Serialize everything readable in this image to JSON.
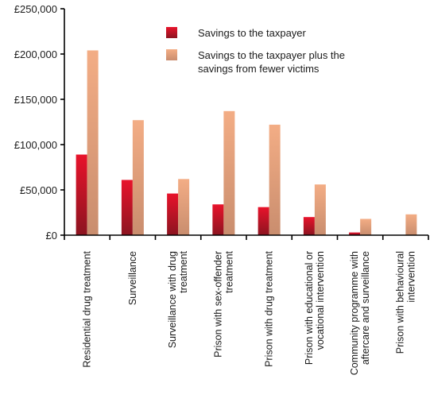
{
  "chart_data": {
    "type": "bar",
    "title": "",
    "xlabel": "",
    "ylabel": "",
    "ylim": [
      0,
      250000
    ],
    "yticks": [
      0,
      50000,
      100000,
      150000,
      200000,
      250000
    ],
    "ytick_labels": [
      "£0",
      "£50,000",
      "£100,000",
      "£150,000",
      "£200,000",
      "£250,000"
    ],
    "grid": false,
    "legend_position": "top-right",
    "categories": [
      [
        "Residential drug treatment"
      ],
      [
        "Surveillance"
      ],
      [
        "Surveillance with drug",
        "treatment"
      ],
      [
        "Prison with sex-offender",
        "treatment"
      ],
      [
        "Prison with drug treatment"
      ],
      [
        "Prison with educational or",
        "vocational intervention"
      ],
      [
        "Community programme with",
        "aftercare and surveillance"
      ],
      [
        "Prison with behavioural",
        "intervention"
      ]
    ],
    "series": [
      {
        "name": "Savings to the taxpayer",
        "legend_lines": [
          "Savings to the taxpayer"
        ],
        "color_top": "#e8132b",
        "color_bottom": "#8c1420",
        "values": [
          89000,
          61000,
          46000,
          34000,
          31000,
          20000,
          3000,
          0
        ]
      },
      {
        "name": "Savings to the taxpayer plus the savings from fewer victims",
        "legend_lines": [
          "Savings to the taxpayer plus the",
          "savings from fewer victims"
        ],
        "color_top": "#f3ad85",
        "color_bottom": "#c98d6e",
        "values": [
          204000,
          127000,
          62000,
          137000,
          122000,
          56000,
          18000,
          23000
        ]
      }
    ]
  }
}
